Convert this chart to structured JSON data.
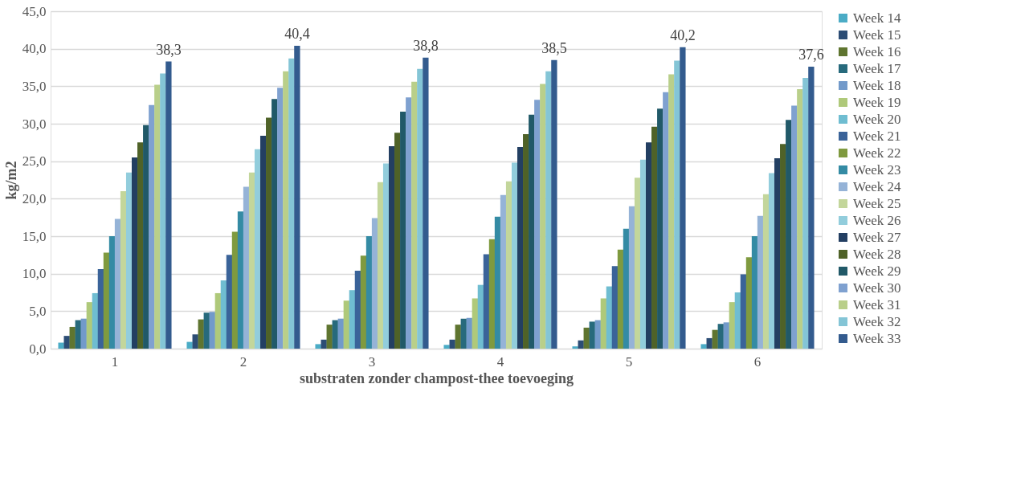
{
  "chart_data": {
    "type": "bar",
    "xlabel": "substraten zonder champost-thee toevoeging",
    "ylabel": "kg/m2",
    "categories": [
      "1",
      "2",
      "3",
      "4",
      "5",
      "6"
    ],
    "ylim": [
      0,
      45
    ],
    "yticks": [
      {
        "value": 0,
        "label": "0,0"
      },
      {
        "value": 5,
        "label": "5,0"
      },
      {
        "value": 10,
        "label": "10,0"
      },
      {
        "value": 15,
        "label": "15,0"
      },
      {
        "value": 20,
        "label": "20,0"
      },
      {
        "value": 25,
        "label": "25,0"
      },
      {
        "value": 30,
        "label": "30,0"
      },
      {
        "value": 35,
        "label": "35,0"
      },
      {
        "value": 40,
        "label": "40,0"
      },
      {
        "value": 45,
        "label": "45,0"
      }
    ],
    "grid": "y",
    "legend": "right",
    "series": [
      {
        "name": "Week 14",
        "color": "#4bacc6",
        "values": [
          0.8,
          0.9,
          0.6,
          0.5,
          0.3,
          0.6
        ]
      },
      {
        "name": "Week 15",
        "color": "#2c4d75",
        "values": [
          1.7,
          1.9,
          1.2,
          1.2,
          1.1,
          1.4
        ]
      },
      {
        "name": "Week 16",
        "color": "#5f7530",
        "values": [
          2.9,
          3.9,
          3.2,
          3.2,
          2.8,
          2.5
        ]
      },
      {
        "name": "Week 17",
        "color": "#276a7c",
        "values": [
          3.8,
          4.8,
          3.8,
          4.0,
          3.6,
          3.3
        ]
      },
      {
        "name": "Week 18",
        "color": "#729aca",
        "values": [
          4.0,
          4.9,
          4.0,
          4.1,
          3.8,
          3.5
        ]
      },
      {
        "name": "Week 19",
        "color": "#afc97a",
        "values": [
          6.2,
          7.4,
          6.4,
          6.7,
          6.7,
          6.2
        ]
      },
      {
        "name": "Week 20",
        "color": "#6fbdd1",
        "values": [
          7.4,
          9.1,
          7.8,
          8.5,
          8.3,
          7.5
        ]
      },
      {
        "name": "Week 21",
        "color": "#3a6399",
        "values": [
          10.6,
          12.5,
          10.4,
          12.6,
          11.0,
          9.9
        ]
      },
      {
        "name": "Week 22",
        "color": "#7f9a3f",
        "values": [
          12.8,
          15.6,
          12.4,
          14.6,
          13.2,
          12.2
        ]
      },
      {
        "name": "Week 23",
        "color": "#348ba4",
        "values": [
          15.0,
          18.3,
          15.0,
          17.6,
          16.0,
          15.0
        ]
      },
      {
        "name": "Week 24",
        "color": "#95b3d7",
        "values": [
          17.3,
          21.6,
          17.4,
          20.5,
          19.0,
          17.7
        ]
      },
      {
        "name": "Week 25",
        "color": "#c3d69b",
        "values": [
          21.0,
          23.5,
          22.2,
          22.3,
          22.8,
          20.6
        ]
      },
      {
        "name": "Week 26",
        "color": "#92cddc",
        "values": [
          23.5,
          26.6,
          24.7,
          24.8,
          25.2,
          23.4
        ]
      },
      {
        "name": "Week 27",
        "color": "#233f62",
        "values": [
          25.5,
          28.4,
          27.0,
          26.9,
          27.5,
          25.4
        ]
      },
      {
        "name": "Week 28",
        "color": "#4f6228",
        "values": [
          27.5,
          30.8,
          28.8,
          28.6,
          29.6,
          27.3
        ]
      },
      {
        "name": "Week 29",
        "color": "#215968",
        "values": [
          29.8,
          33.3,
          31.6,
          31.2,
          32.0,
          30.5
        ]
      },
      {
        "name": "Week 30",
        "color": "#7fa1d0",
        "values": [
          32.5,
          34.8,
          33.5,
          33.2,
          34.2,
          32.4
        ]
      },
      {
        "name": "Week 31",
        "color": "#b9cf8a",
        "values": [
          35.2,
          37.0,
          35.6,
          35.3,
          36.6,
          34.6
        ]
      },
      {
        "name": "Week 32",
        "color": "#84c5d6",
        "values": [
          36.7,
          38.7,
          37.3,
          37.0,
          38.4,
          36.1
        ]
      },
      {
        "name": "Week 33",
        "color": "#335b8e",
        "values": [
          38.3,
          40.4,
          38.8,
          38.5,
          40.2,
          37.6
        ],
        "value_labels": [
          "38,3",
          "40,4",
          "38,8",
          "38,5",
          "40,2",
          "37,6"
        ]
      }
    ]
  }
}
